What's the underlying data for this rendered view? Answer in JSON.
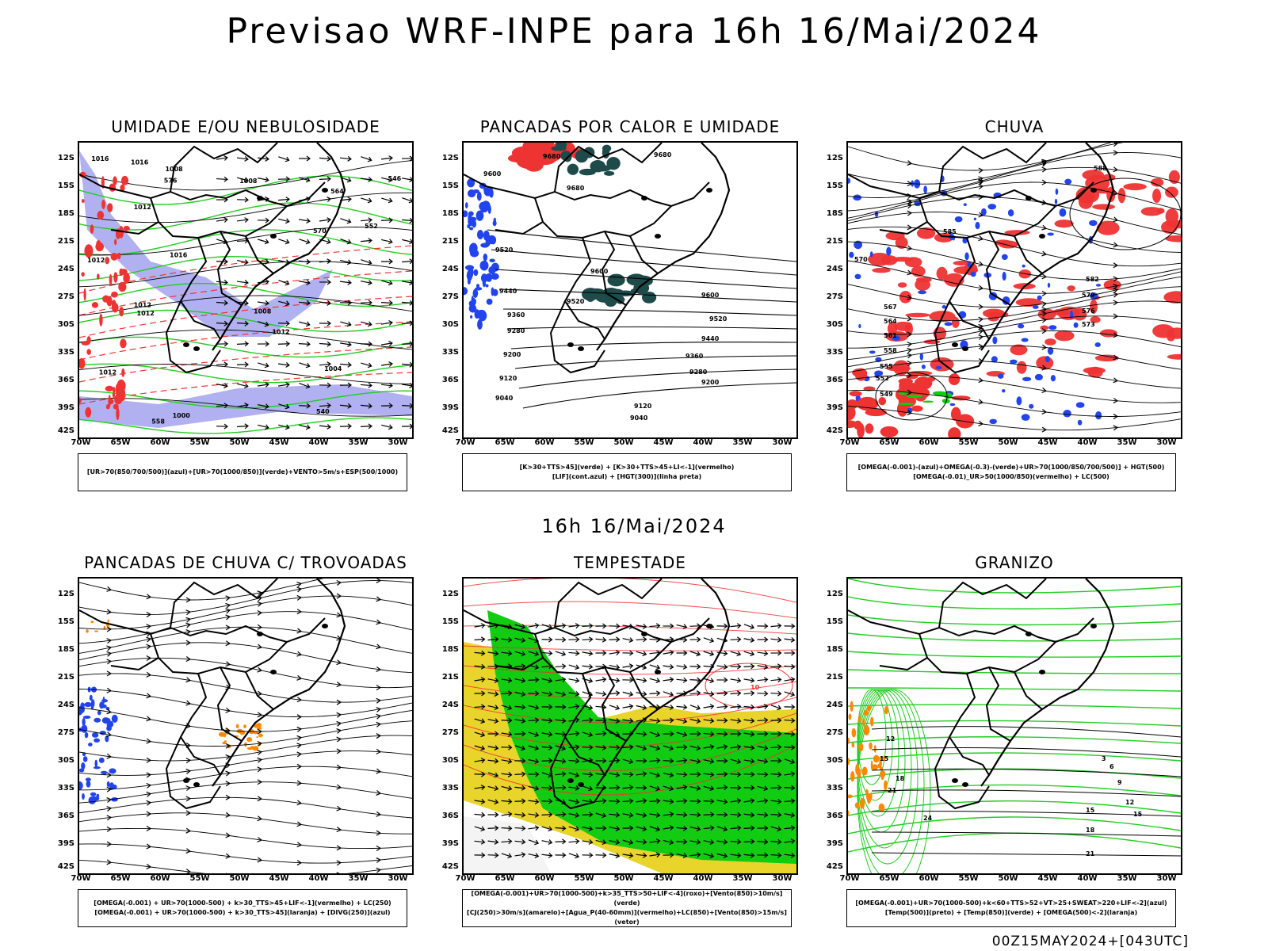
{
  "main_title": "Previsao WRF-INPE  para 16h 16/Mai/2024",
  "mid_time": "16h 16/Mai/2024",
  "footer_code": "00Z15MAY2024+[043UTC]",
  "lat_labels": [
    "12S",
    "15S",
    "18S",
    "21S",
    "24S",
    "27S",
    "30S",
    "33S",
    "36S",
    "39S",
    "42S"
  ],
  "lon_labels": [
    "70W",
    "65W",
    "60W",
    "55W",
    "50W",
    "45W",
    "40W",
    "35W",
    "30W"
  ],
  "colors": {
    "blue_fill": "#a9a9f0",
    "green": "#22cc22",
    "red": "#ee3333",
    "dark_teal": "#1e4a4a",
    "blue": "#2244ee",
    "orange": "#ff8800",
    "yellow": "#e8d42a",
    "bright_green": "#11cc11"
  },
  "panels": [
    {
      "title": "UMIDADE E/OU NEBULOSIDADE",
      "legend": [
        "[UR>70(850/700/500)](azul)+[UR>70(1000/850)](verde)+VENTO>5m/s+ESP(500/1000)"
      ],
      "contour_labels": [
        "1012",
        "1016",
        "1012",
        "1016",
        "1012",
        "1012",
        "1008",
        "1012",
        "1016",
        "1012",
        "1008",
        "1004",
        "1008",
        "1000",
        "576",
        "570",
        "564",
        "558",
        "552",
        "546",
        "540"
      ]
    },
    {
      "title": "PANCADAS POR CALOR E UMIDADE",
      "legend": [
        "[K>30+TTS>45](verde) + [K>30+TTS>45+LI<-1](vermelho)",
        "[LIF](cont.azul) + [HGT(300)](linha preta)"
      ],
      "contour_labels": [
        "9680",
        "9680",
        "9600",
        "9520",
        "9440",
        "9360",
        "9280",
        "9200",
        "9120",
        "9040",
        "9600",
        "9520",
        "9440",
        "9360",
        "9280",
        "9200",
        "9120",
        "9040",
        "9680",
        "9600",
        "9520"
      ]
    },
    {
      "title": "CHUVA",
      "legend": [
        "[OMEGA(-0.001)-(azul)+OMEGA(-0.3)-(verde)+UR>70(1000/850/700/500)] + HGT(500)",
        "[OMEGA(-0.01)_UR>50(1000/850)(vermelho) + LC(500)"
      ],
      "contour_labels": [
        "588",
        "585",
        "582",
        "579",
        "576",
        "573",
        "570",
        "567",
        "564",
        "561",
        "558",
        "555",
        "552",
        "549"
      ]
    },
    {
      "title": "PANCADAS DE CHUVA C/ TROVOADAS",
      "legend": [
        "[OMEGA(-0.001) + UR>70(1000-500) + k>30_TTS>45+LIF<-1](vermelho) + LC(250)",
        "[OMEGA(-0.001) + UR>70(1000-500) + k>30_TTS>45](laranja) + [DIVG(250)](azul)"
      ],
      "contour_labels": []
    },
    {
      "title": "TEMPESTADE",
      "legend": [
        "[OMEGA(-0.001)+UR>70(1000-500)+k>35_TTS>50+LIF<-4](roxo)+[Vento(850)>10m/s](verde)",
        "[CJ(250)>30m/s](amarelo)+[Agua_P(40-60mm)](vermelho)+LC(850)+[Vento(850)>15m/s](vetor)"
      ],
      "contour_labels": [
        "10"
      ]
    },
    {
      "title": "GRANIZO",
      "legend": [
        "[OMEGA(-0.001)+UR>70(1000-500)+k<60+TTS>52+VT>25+SWEAT>220+LIF<-2](azul)",
        "[Temp(500)](preto) + [Temp(850)](verde) + [OMEGA(500)<-2](laranja)"
      ],
      "contour_labels": [
        "12",
        "15",
        "18",
        "21",
        "24",
        "15",
        "18",
        "21",
        "3",
        "6",
        "9",
        "12",
        "15"
      ]
    }
  ]
}
